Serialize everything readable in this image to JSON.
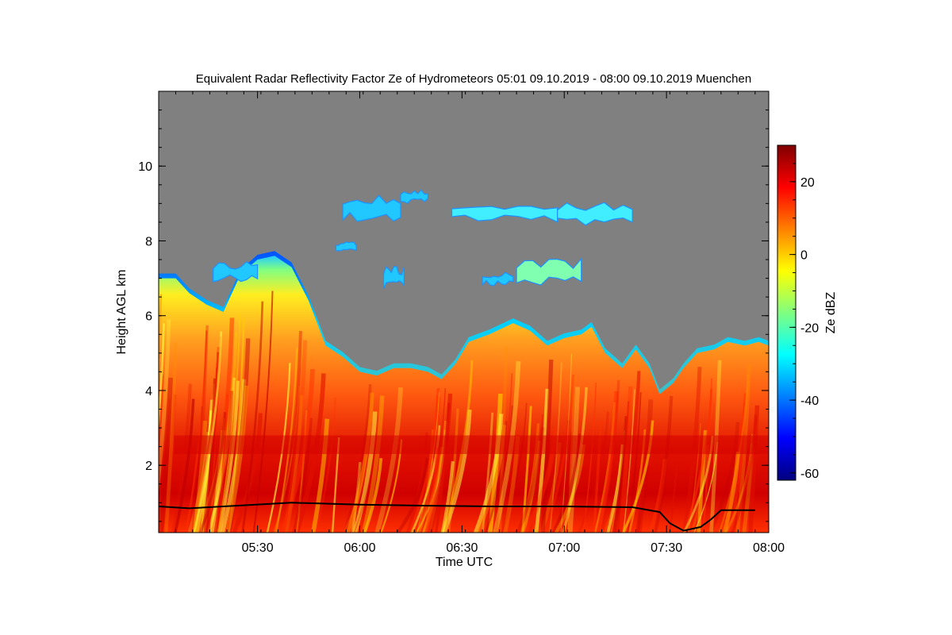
{
  "chart_data": {
    "type": "heatmap",
    "title": "Equivalent Radar Reflectivity Factor Ze of Hydrometeors   05:01 09.10.2019 - 08:00 09.10.2019 Muenchen",
    "xlabel": "Time UTC",
    "ylabel": "Height AGL km",
    "x_range_minutes": [
      301,
      480
    ],
    "x_ticks": [
      {
        "label": "05:30",
        "value": 330
      },
      {
        "label": "06:00",
        "value": 360
      },
      {
        "label": "06:30",
        "value": 390
      },
      {
        "label": "07:00",
        "value": 420
      },
      {
        "label": "07:30",
        "value": 450
      },
      {
        "label": "08:00",
        "value": 480
      }
    ],
    "ylim": [
      0.2,
      12.0
    ],
    "y_ticks": [
      2,
      4,
      6,
      8,
      10
    ],
    "colorbar": {
      "label": "Ze dBZ",
      "range": [
        -62,
        30
      ],
      "ticks": [
        -60,
        -40,
        -20,
        0,
        20
      ],
      "colormap": [
        "#00007f",
        "#0000ff",
        "#0080ff",
        "#00ffff",
        "#80ff80",
        "#ffff00",
        "#ff8000",
        "#ff0000",
        "#7f0000"
      ]
    },
    "background_color": "#808080",
    "cloud_top_km": [
      [
        301,
        7.0
      ],
      [
        306,
        7.0
      ],
      [
        310,
        6.6
      ],
      [
        315,
        6.3
      ],
      [
        320,
        6.1
      ],
      [
        325,
        7.1
      ],
      [
        330,
        7.5
      ],
      [
        335,
        7.6
      ],
      [
        340,
        7.3
      ],
      [
        345,
        6.4
      ],
      [
        350,
        5.2
      ],
      [
        355,
        4.9
      ],
      [
        360,
        4.5
      ],
      [
        365,
        4.4
      ],
      [
        370,
        4.6
      ],
      [
        375,
        4.6
      ],
      [
        380,
        4.5
      ],
      [
        384,
        4.3
      ],
      [
        388,
        4.7
      ],
      [
        392,
        5.3
      ],
      [
        398,
        5.5
      ],
      [
        405,
        5.8
      ],
      [
        410,
        5.6
      ],
      [
        415,
        5.2
      ],
      [
        420,
        5.4
      ],
      [
        425,
        5.5
      ],
      [
        428,
        5.7
      ],
      [
        432,
        5.0
      ],
      [
        437,
        4.6
      ],
      [
        441,
        5.1
      ],
      [
        445,
        4.6
      ],
      [
        448,
        3.9
      ],
      [
        452,
        4.2
      ],
      [
        455,
        4.6
      ],
      [
        459,
        5.0
      ],
      [
        464,
        5.1
      ],
      [
        468,
        5.3
      ],
      [
        473,
        5.2
      ],
      [
        477,
        5.3
      ],
      [
        480,
        5.2
      ]
    ],
    "melting_layer_km": [
      2.3,
      2.8
    ],
    "cloud_base_km": [
      [
        301,
        0.9
      ],
      [
        310,
        0.85
      ],
      [
        320,
        0.9
      ],
      [
        340,
        1.0
      ],
      [
        360,
        0.95
      ],
      [
        380,
        0.92
      ],
      [
        400,
        0.9
      ],
      [
        420,
        0.9
      ],
      [
        440,
        0.88
      ],
      [
        448,
        0.75
      ],
      [
        451,
        0.45
      ],
      [
        455,
        0.25
      ],
      [
        460,
        0.35
      ],
      [
        463,
        0.55
      ],
      [
        466,
        0.8
      ],
      [
        476,
        0.8
      ]
    ],
    "upper_cloud_patches_km": [
      {
        "x": [
          317,
          330
        ],
        "y": [
          6.9,
          7.5
        ],
        "ze": -28
      },
      {
        "x": [
          355,
          372
        ],
        "y": [
          8.5,
          9.3
        ],
        "ze": -28
      },
      {
        "x": [
          372,
          380
        ],
        "y": [
          9.0,
          9.4
        ],
        "ze": -32
      },
      {
        "x": [
          387,
          418
        ],
        "y": [
          8.5,
          9.1
        ],
        "ze": -24
      },
      {
        "x": [
          418,
          440
        ],
        "y": [
          8.4,
          9.1
        ],
        "ze": -26
      },
      {
        "x": [
          353,
          359
        ],
        "y": [
          7.7,
          8.0
        ],
        "ze": -30
      },
      {
        "x": [
          367,
          373
        ],
        "y": [
          6.7,
          7.4
        ],
        "ze": -28
      },
      {
        "x": [
          396,
          405
        ],
        "y": [
          6.8,
          7.2
        ],
        "ze": -28
      },
      {
        "x": [
          406,
          425
        ],
        "y": [
          6.8,
          7.6
        ],
        "ze": -20
      }
    ]
  }
}
